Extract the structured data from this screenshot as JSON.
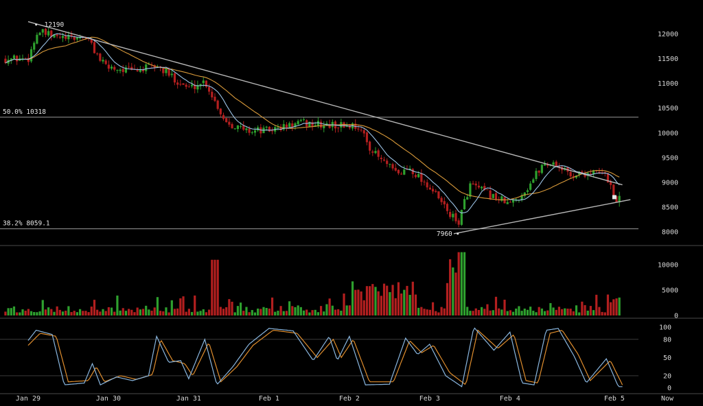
{
  "chart_data": [
    {
      "name": "price",
      "type": "candlestick",
      "y_ticks": [
        12000,
        11500,
        11000,
        10500,
        10000,
        9500,
        9000,
        8500,
        8000
      ],
      "ylim": [
        7860,
        12300
      ],
      "levels": [
        {
          "label": "50.0% 10318",
          "value": 10318
        },
        {
          "label": "38.2% 8059.1",
          "value": 8059.1
        }
      ],
      "annotations": [
        {
          "label": "12190",
          "value": 12190,
          "x": 0.1
        },
        {
          "label": "7960",
          "value": 7960,
          "x": 5.35
        }
      ],
      "trendlines": [
        {
          "x1": 0.0,
          "y1": 12250,
          "x2": 7.4,
          "y2": 8950
        },
        {
          "x1": 5.3,
          "y1": 7960,
          "x2": 7.5,
          "y2": 8650
        }
      ],
      "current_price": 8700,
      "close_anchors": [
        [
          0,
          11500
        ],
        [
          0.12,
          12050
        ],
        [
          0.3,
          11950
        ],
        [
          0.5,
          11900
        ],
        [
          0.72,
          11950
        ],
        [
          0.95,
          11350
        ],
        [
          1.3,
          11250
        ],
        [
          1.6,
          11350
        ],
        [
          2.0,
          10900
        ],
        [
          2.2,
          11050
        ],
        [
          2.45,
          10250
        ],
        [
          2.7,
          10050
        ],
        [
          3.0,
          10050
        ],
        [
          3.4,
          10200
        ],
        [
          3.7,
          10150
        ],
        [
          4.1,
          10150
        ],
        [
          4.3,
          9600
        ],
        [
          4.6,
          9150
        ],
        [
          4.75,
          9300
        ],
        [
          5.0,
          8900
        ],
        [
          5.35,
          8150
        ],
        [
          5.5,
          8950
        ],
        [
          5.75,
          8750
        ],
        [
          6.0,
          8550
        ],
        [
          6.2,
          8850
        ],
        [
          6.4,
          9350
        ],
        [
          6.55,
          9400
        ],
        [
          6.75,
          9150
        ],
        [
          7.0,
          9200
        ],
        [
          7.2,
          9150
        ],
        [
          7.3,
          8700
        ],
        [
          7.35,
          8650
        ]
      ],
      "volume_ticks": [
        10000,
        5000,
        0
      ],
      "volume_ylim": [
        0,
        13000
      ],
      "stoch_ticks": [
        100,
        80,
        50,
        20,
        0
      ],
      "stoch_ylim": [
        -5,
        108
      ],
      "stoch_lines": [
        80,
        20
      ],
      "stoch_k_anchors": [
        [
          0,
          78
        ],
        [
          0.1,
          95
        ],
        [
          0.3,
          88
        ],
        [
          0.45,
          5
        ],
        [
          0.7,
          8
        ],
        [
          0.8,
          40
        ],
        [
          0.9,
          5
        ],
        [
          1.1,
          18
        ],
        [
          1.3,
          12
        ],
        [
          1.5,
          20
        ],
        [
          1.6,
          85
        ],
        [
          1.75,
          42
        ],
        [
          1.9,
          45
        ],
        [
          2.0,
          15
        ],
        [
          2.2,
          80
        ],
        [
          2.35,
          5
        ],
        [
          2.55,
          35
        ],
        [
          2.75,
          72
        ],
        [
          3.0,
          98
        ],
        [
          3.3,
          94
        ],
        [
          3.55,
          45
        ],
        [
          3.75,
          85
        ],
        [
          3.85,
          45
        ],
        [
          4.0,
          85
        ],
        [
          4.2,
          5
        ],
        [
          4.5,
          6
        ],
        [
          4.7,
          82
        ],
        [
          4.85,
          55
        ],
        [
          5.0,
          72
        ],
        [
          5.2,
          20
        ],
        [
          5.4,
          2
        ],
        [
          5.55,
          100
        ],
        [
          5.8,
          62
        ],
        [
          6.0,
          92
        ],
        [
          6.15,
          8
        ],
        [
          6.3,
          5
        ],
        [
          6.45,
          95
        ],
        [
          6.6,
          98
        ],
        [
          6.8,
          52
        ],
        [
          6.95,
          8
        ],
        [
          7.2,
          48
        ],
        [
          7.35,
          2
        ]
      ],
      "stoch_d_anchors": [
        [
          0,
          70
        ],
        [
          0.15,
          90
        ],
        [
          0.35,
          85
        ],
        [
          0.5,
          10
        ],
        [
          0.75,
          12
        ],
        [
          0.85,
          35
        ],
        [
          0.95,
          10
        ],
        [
          1.15,
          20
        ],
        [
          1.35,
          14
        ],
        [
          1.55,
          22
        ],
        [
          1.65,
          80
        ],
        [
          1.8,
          45
        ],
        [
          1.95,
          40
        ],
        [
          2.05,
          20
        ],
        [
          2.25,
          75
        ],
        [
          2.4,
          10
        ],
        [
          2.6,
          35
        ],
        [
          2.8,
          70
        ],
        [
          3.05,
          95
        ],
        [
          3.35,
          90
        ],
        [
          3.6,
          50
        ],
        [
          3.8,
          80
        ],
        [
          3.9,
          50
        ],
        [
          4.05,
          80
        ],
        [
          4.25,
          10
        ],
        [
          4.55,
          10
        ],
        [
          4.75,
          78
        ],
        [
          4.9,
          58
        ],
        [
          5.05,
          70
        ],
        [
          5.25,
          25
        ],
        [
          5.45,
          5
        ],
        [
          5.6,
          95
        ],
        [
          5.85,
          65
        ],
        [
          6.05,
          88
        ],
        [
          6.2,
          12
        ],
        [
          6.35,
          8
        ],
        [
          6.5,
          90
        ],
        [
          6.65,
          95
        ],
        [
          6.85,
          55
        ],
        [
          7.0,
          12
        ],
        [
          7.25,
          45
        ],
        [
          7.4,
          5
        ]
      ]
    }
  ],
  "x_axis": {
    "labels": [
      "Jan 29",
      "Jan 30",
      "Jan 31",
      "Feb 1",
      "Feb 2",
      "Feb 3",
      "Feb 4",
      "Feb 5"
    ],
    "label_x": [
      0,
      1,
      2,
      3,
      4,
      5,
      6,
      7.3
    ],
    "now_label": "Now",
    "xlim": [
      -0.35,
      7.6
    ]
  },
  "colors": {
    "background": "#000000",
    "up": "#2ea02e",
    "down": "#b31f1f",
    "ma_fast": "#9cc3e6",
    "ma_slow": "#d99a3a",
    "trendline": "#b8b8b8",
    "level": "#9a9a9a",
    "grid": "#3a3a3a",
    "axis_text": "#d8d8d8",
    "stoch_k": "#8ab7e0",
    "stoch_d": "#e08e2e"
  }
}
